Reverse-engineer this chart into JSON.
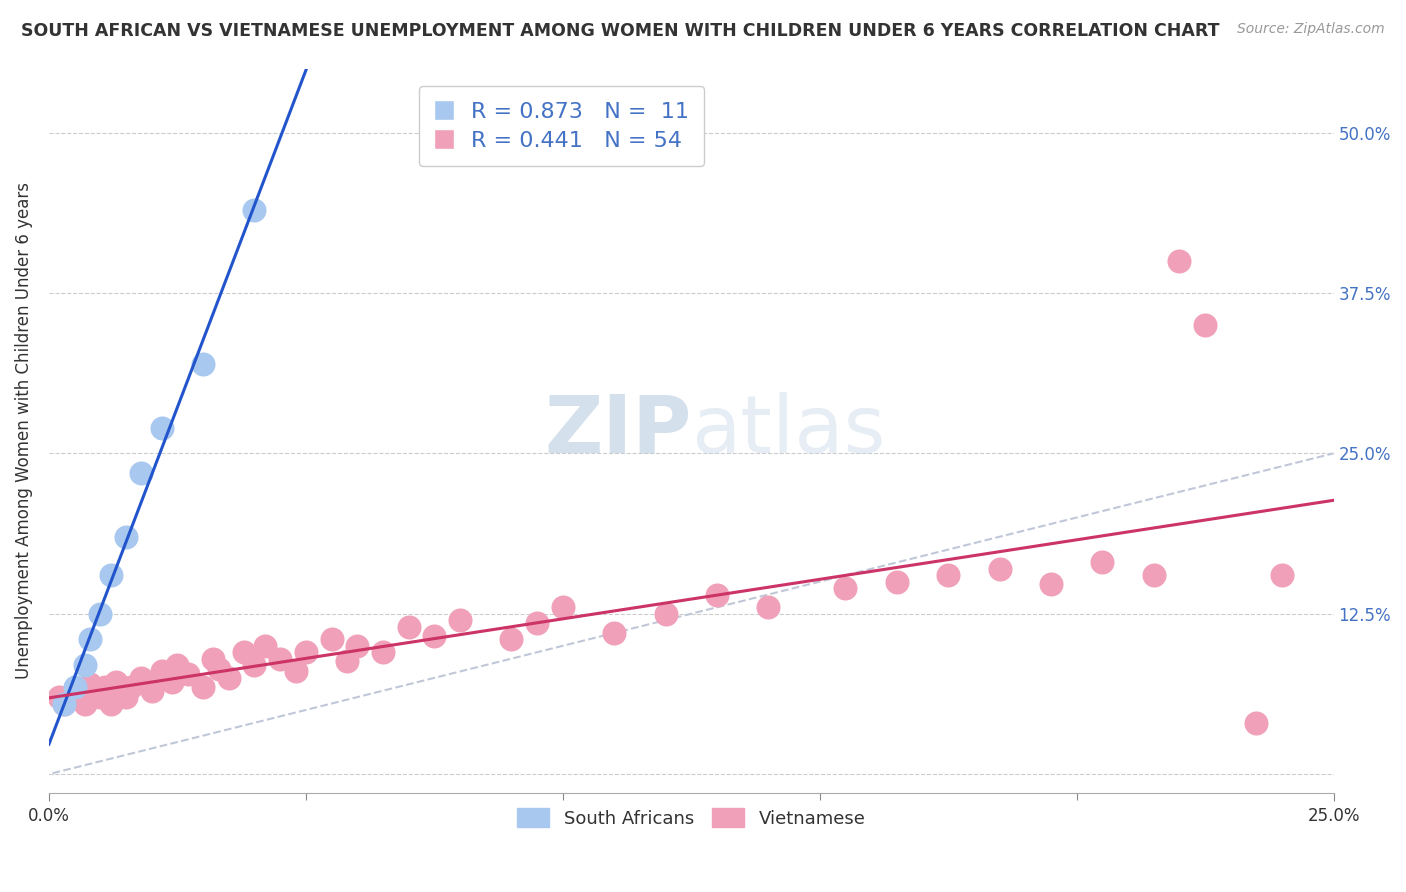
{
  "title": "SOUTH AFRICAN VS VIETNAMESE UNEMPLOYMENT AMONG WOMEN WITH CHILDREN UNDER 6 YEARS CORRELATION CHART",
  "source": "Source: ZipAtlas.com",
  "ylabel": "Unemployment Among Women with Children Under 6 years",
  "xlabel": "",
  "xlim": [
    0.0,
    0.25
  ],
  "ylim": [
    -0.015,
    0.55
  ],
  "xticks": [
    0.0,
    0.25
  ],
  "xtick_labels": [
    "0.0%",
    "25.0%"
  ],
  "yticks": [
    0.0,
    0.125,
    0.25,
    0.375,
    0.5
  ],
  "ytick_labels_left": [
    "",
    "",
    "",
    "",
    ""
  ],
  "ytick_labels_right": [
    "",
    "12.5%",
    "25.0%",
    "37.5%",
    "50.0%"
  ],
  "background_color": "#ffffff",
  "watermark_zip": "ZIP",
  "watermark_atlas": "atlas",
  "sa_color": "#a8c8f0",
  "viet_color": "#f0a0b8",
  "sa_line_color": "#2255cc",
  "viet_line_color": "#cc3366",
  "dashed_line_color": "#c0c8d8",
  "sa_R": 0.873,
  "sa_N": 11,
  "viet_R": 0.441,
  "viet_N": 54,
  "legend_label_sa": "South Africans",
  "legend_label_viet": "Vietnamese",
  "sa_x": [
    0.003,
    0.005,
    0.007,
    0.008,
    0.01,
    0.012,
    0.015,
    0.018,
    0.022,
    0.03,
    0.04
  ],
  "sa_y": [
    0.055,
    0.068,
    0.085,
    0.105,
    0.125,
    0.155,
    0.185,
    0.235,
    0.27,
    0.32,
    0.44
  ],
  "viet_x": [
    0.002,
    0.003,
    0.005,
    0.006,
    0.007,
    0.008,
    0.009,
    0.01,
    0.011,
    0.012,
    0.013,
    0.015,
    0.016,
    0.018,
    0.02,
    0.022,
    0.024,
    0.025,
    0.027,
    0.03,
    0.032,
    0.033,
    0.035,
    0.038,
    0.04,
    0.042,
    0.045,
    0.048,
    0.05,
    0.055,
    0.058,
    0.06,
    0.065,
    0.07,
    0.075,
    0.08,
    0.09,
    0.095,
    0.1,
    0.11,
    0.12,
    0.13,
    0.14,
    0.155,
    0.165,
    0.175,
    0.185,
    0.195,
    0.205,
    0.215,
    0.22,
    0.225,
    0.235,
    0.24
  ],
  "viet_y": [
    0.06,
    0.055,
    0.065,
    0.06,
    0.055,
    0.07,
    0.065,
    0.06,
    0.068,
    0.055,
    0.072,
    0.06,
    0.068,
    0.075,
    0.065,
    0.08,
    0.072,
    0.085,
    0.078,
    0.068,
    0.09,
    0.082,
    0.075,
    0.095,
    0.085,
    0.1,
    0.09,
    0.08,
    0.095,
    0.105,
    0.088,
    0.1,
    0.095,
    0.115,
    0.108,
    0.12,
    0.105,
    0.118,
    0.13,
    0.11,
    0.125,
    0.14,
    0.13,
    0.145,
    0.15,
    0.155,
    0.16,
    0.148,
    0.165,
    0.155,
    0.4,
    0.35,
    0.04,
    0.155
  ]
}
